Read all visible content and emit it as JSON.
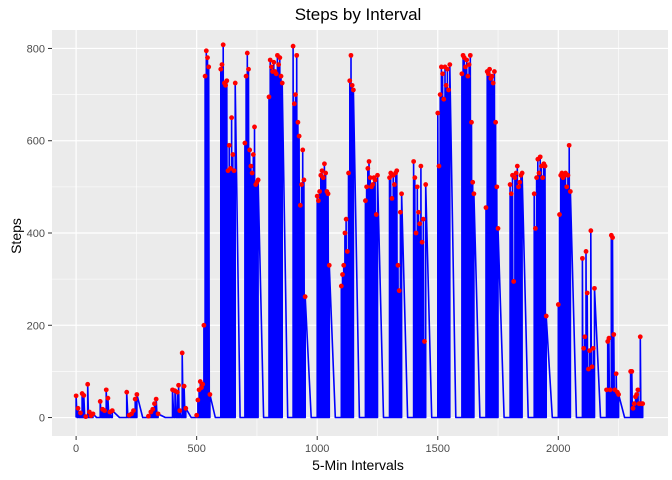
{
  "chart_data": {
    "type": "line",
    "title": "Steps by Interval",
    "xlabel": "5-Min Intervals",
    "ylabel": "Steps",
    "xlim": [
      -100,
      2455
    ],
    "ylim": [
      -40,
      840
    ],
    "xticks": [
      0,
      500,
      1000,
      1500,
      2000
    ],
    "yticks": [
      0,
      200,
      400,
      600,
      800
    ],
    "grid": true,
    "legend": "none",
    "colors": {
      "line": "#0000ff",
      "point": "#ff0000",
      "panel": "#ebebeb",
      "grid": "#ffffff"
    },
    "series": [
      {
        "x": [
          0,
          8,
          18,
          25,
          32,
          40,
          48,
          55,
          62,
          70,
          100,
          110,
          118,
          125,
          132,
          140,
          150,
          210,
          220,
          230,
          238,
          245,
          252,
          300,
          310,
          318,
          325,
          332,
          340,
          400,
          410,
          420,
          425,
          430,
          440,
          448,
          455,
          500,
          505,
          510,
          515,
          520,
          525,
          530,
          535,
          540,
          545,
          550,
          555,
          600,
          605,
          610,
          615,
          620,
          625,
          630,
          635,
          640,
          645,
          650,
          655,
          660,
          700,
          705,
          710,
          715,
          720,
          725,
          730,
          735,
          740,
          745,
          750,
          755,
          800,
          805,
          810,
          815,
          820,
          825,
          830,
          835,
          840,
          845,
          850,
          855,
          900,
          905,
          910,
          915,
          920,
          925,
          930,
          935,
          940,
          945,
          950,
          1000,
          1005,
          1010,
          1015,
          1020,
          1025,
          1030,
          1035,
          1040,
          1045,
          1050,
          1100,
          1105,
          1110,
          1115,
          1120,
          1125,
          1130,
          1135,
          1140,
          1145,
          1150,
          1200,
          1205,
          1210,
          1215,
          1220,
          1225,
          1230,
          1235,
          1240,
          1245,
          1250,
          1300,
          1305,
          1310,
          1315,
          1320,
          1325,
          1330,
          1335,
          1340,
          1345,
          1350,
          1400,
          1405,
          1410,
          1415,
          1420,
          1425,
          1430,
          1435,
          1440,
          1445,
          1450,
          1500,
          1505,
          1510,
          1515,
          1520,
          1525,
          1530,
          1535,
          1540,
          1545,
          1550,
          1600,
          1605,
          1610,
          1615,
          1620,
          1625,
          1630,
          1635,
          1640,
          1645,
          1650,
          1700,
          1705,
          1710,
          1715,
          1720,
          1725,
          1730,
          1735,
          1740,
          1745,
          1750,
          1800,
          1805,
          1810,
          1815,
          1820,
          1825,
          1830,
          1835,
          1840,
          1845,
          1850,
          1900,
          1905,
          1910,
          1915,
          1920,
          1925,
          1930,
          1935,
          1940,
          1945,
          1950,
          2000,
          2005,
          2010,
          2015,
          2020,
          2025,
          2030,
          2035,
          2040,
          2045,
          2050,
          2100,
          2105,
          2110,
          2115,
          2120,
          2125,
          2130,
          2135,
          2140,
          2145,
          2150,
          2200,
          2205,
          2210,
          2215,
          2220,
          2225,
          2230,
          2235,
          2240,
          2245,
          2250,
          2300,
          2305,
          2310,
          2315,
          2320,
          2325,
          2330,
          2335,
          2340,
          2345,
          2350
        ],
        "y": [
          47,
          20,
          10,
          52,
          48,
          2,
          72,
          12,
          4,
          8,
          35,
          18,
          15,
          60,
          42,
          12,
          15,
          55,
          5,
          8,
          15,
          40,
          50,
          3,
          12,
          18,
          30,
          40,
          8,
          60,
          58,
          55,
          70,
          15,
          140,
          68,
          20,
          5,
          38,
          60,
          78,
          65,
          72,
          200,
          740,
          795,
          780,
          760,
          50,
          755,
          765,
          808,
          725,
          720,
          730,
          535,
          590,
          540,
          650,
          570,
          535,
          725,
          595,
          740,
          790,
          755,
          580,
          545,
          530,
          570,
          630,
          505,
          510,
          515,
          695,
          775,
          760,
          750,
          770,
          750,
          745,
          785,
          765,
          780,
          740,
          725,
          805,
          680,
          700,
          785,
          640,
          610,
          460,
          505,
          580,
          515,
          262,
          480,
          470,
          490,
          525,
          535,
          520,
          550,
          530,
          490,
          485,
          330,
          285,
          310,
          330,
          400,
          430,
          360,
          530,
          730,
          785,
          720,
          710,
          470,
          500,
          540,
          555,
          520,
          500,
          505,
          520,
          515,
          440,
          525,
          520,
          530,
          475,
          525,
          505,
          530,
          535,
          330,
          275,
          445,
          485,
          555,
          520,
          400,
          500,
          445,
          420,
          545,
          380,
          430,
          165,
          505,
          660,
          545,
          700,
          760,
          745,
          690,
          760,
          720,
          755,
          710,
          765,
          745,
          785,
          780,
          760,
          775,
          740,
          765,
          785,
          640,
          510,
          485,
          455,
          750,
          745,
          755,
          735,
          740,
          725,
          750,
          640,
          500,
          410,
          505,
          485,
          525,
          295,
          520,
          530,
          545,
          500,
          510,
          525,
          530,
          485,
          410,
          520,
          560,
          530,
          565,
          545,
          520,
          550,
          545,
          220,
          245,
          440,
          525,
          530,
          520,
          525,
          530,
          500,
          525,
          590,
          490,
          345,
          150,
          175,
          360,
          270,
          105,
          145,
          405,
          110,
          150,
          280,
          60,
          165,
          172,
          60,
          395,
          390,
          180,
          60,
          95,
          55,
          50,
          100,
          100,
          20,
          30,
          45,
          50,
          60,
          30,
          175,
          30,
          30
        ]
      }
    ]
  }
}
